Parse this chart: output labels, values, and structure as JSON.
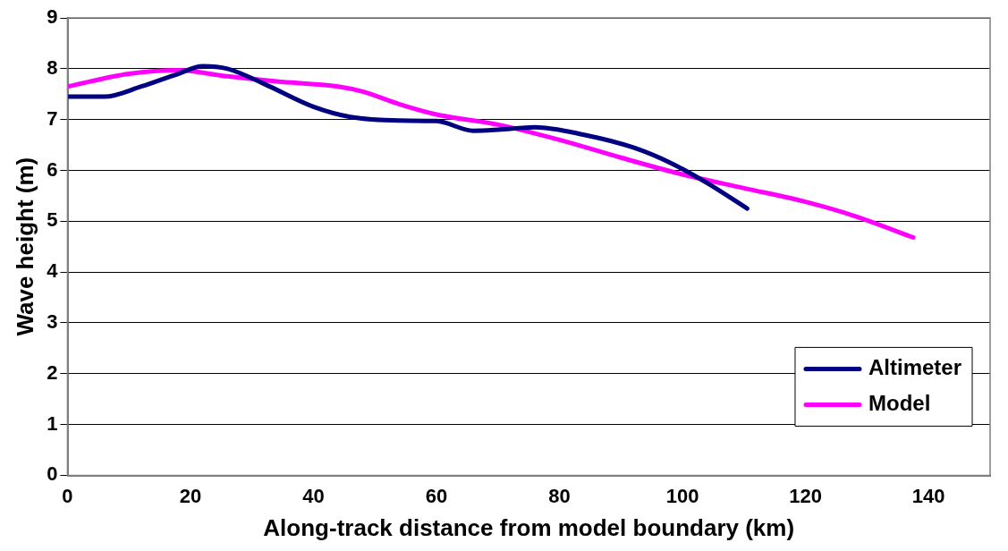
{
  "chart_data": {
    "type": "line",
    "xlabel": "Along-track distance from model boundary (km)",
    "ylabel": "Wave height (m)",
    "xlim": [
      0,
      150
    ],
    "xticks": [
      0,
      20,
      40,
      60,
      80,
      100,
      120,
      140
    ],
    "ylim": [
      0,
      9
    ],
    "yticks": [
      0,
      1,
      2,
      3,
      4,
      5,
      6,
      7,
      8,
      9
    ],
    "grid": "y",
    "legend": "bottom right",
    "marker": "none",
    "line_style": "solid",
    "series": [
      {
        "name": "Altimeter",
        "color": "#000080",
        "x": [
          0,
          6,
          12,
          18,
          22,
          26,
          32,
          40,
          46,
          54,
          60,
          66,
          70,
          76,
          84,
          92,
          98,
          104,
          110.5
        ],
        "values": [
          7.45,
          7.45,
          7.65,
          7.9,
          8.05,
          8.0,
          7.7,
          7.25,
          7.05,
          6.98,
          6.97,
          6.78,
          6.8,
          6.85,
          6.7,
          6.45,
          6.15,
          5.75,
          5.25
        ]
      },
      {
        "name": "Model",
        "color": "#ff00ff",
        "x": [
          0,
          10,
          18,
          26,
          34,
          44,
          48,
          54,
          60,
          70,
          80,
          90,
          100,
          110,
          120,
          128,
          137.5
        ],
        "values": [
          7.65,
          7.9,
          7.97,
          7.85,
          7.75,
          7.65,
          7.55,
          7.3,
          7.1,
          6.9,
          6.6,
          6.25,
          5.92,
          5.65,
          5.38,
          5.1,
          4.68
        ]
      }
    ]
  }
}
